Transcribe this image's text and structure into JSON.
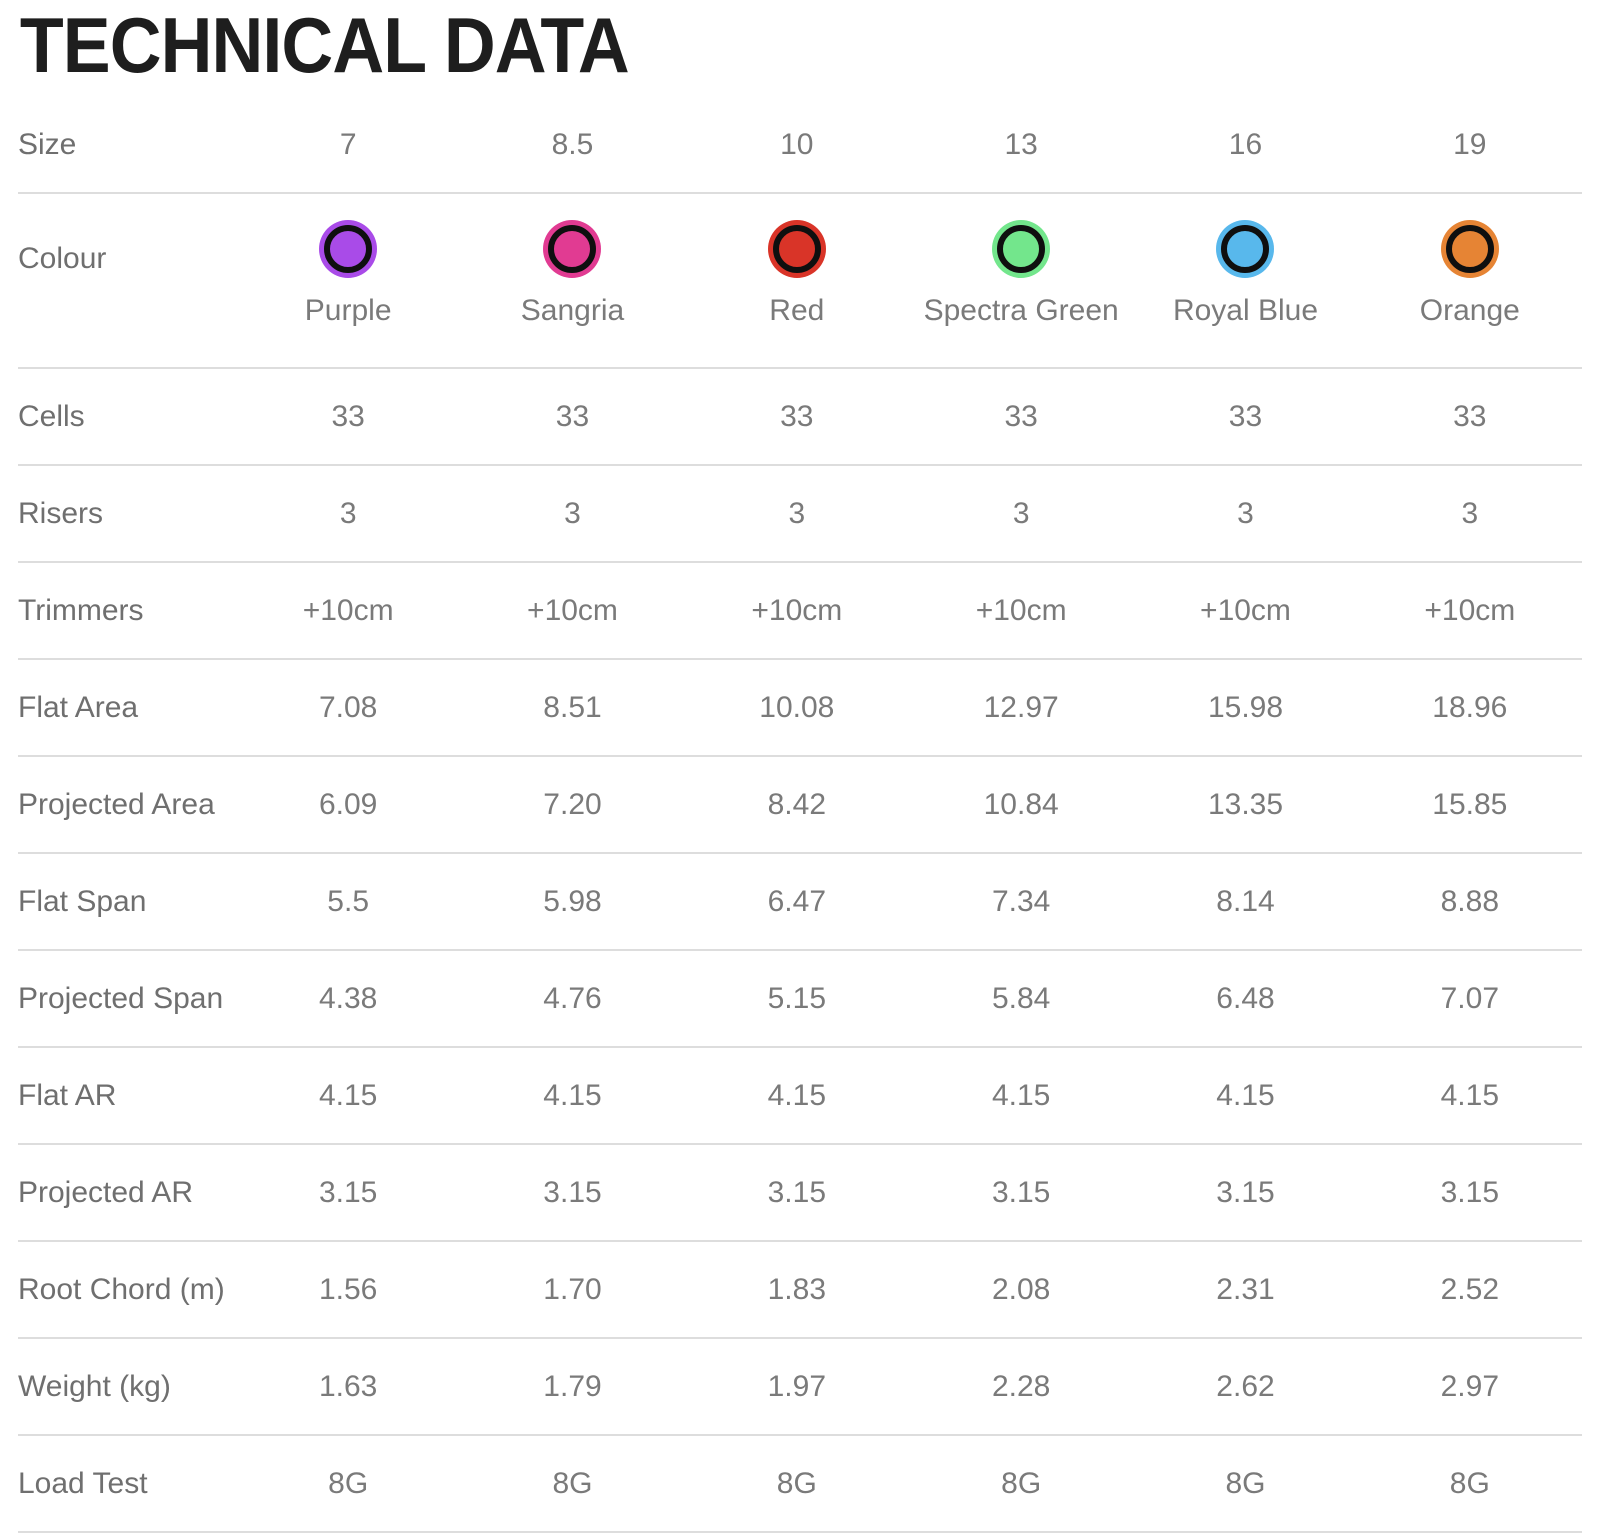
{
  "title": "TECHNICAL DATA",
  "table": {
    "rows": [
      {
        "type": "values",
        "label": "Size",
        "values": [
          "7",
          "8.5",
          "10",
          "13",
          "16",
          "19"
        ]
      },
      {
        "type": "swatches",
        "label": "Colour",
        "ring_color": "#0f0f0f",
        "swatches": [
          {
            "name": "Purple",
            "hex": "#a94be8"
          },
          {
            "name": "Sangria",
            "hex": "#e13b92"
          },
          {
            "name": "Red",
            "hex": "#d93428"
          },
          {
            "name": "Spectra Green",
            "hex": "#73e68c"
          },
          {
            "name": "Royal Blue",
            "hex": "#58b8ec"
          },
          {
            "name": "Orange",
            "hex": "#e68434"
          }
        ]
      },
      {
        "type": "values",
        "label": "Cells",
        "values": [
          "33",
          "33",
          "33",
          "33",
          "33",
          "33"
        ]
      },
      {
        "type": "values",
        "label": "Risers",
        "values": [
          "3",
          "3",
          "3",
          "3",
          "3",
          "3"
        ]
      },
      {
        "type": "values",
        "label": "Trimmers",
        "values": [
          "+10cm",
          "+10cm",
          "+10cm",
          "+10cm",
          "+10cm",
          "+10cm"
        ]
      },
      {
        "type": "values",
        "label": "Flat Area",
        "values": [
          "7.08",
          "8.51",
          "10.08",
          "12.97",
          "15.98",
          "18.96"
        ]
      },
      {
        "type": "values",
        "label": "Projected Area",
        "values": [
          "6.09",
          "7.20",
          "8.42",
          "10.84",
          "13.35",
          "15.85"
        ]
      },
      {
        "type": "values",
        "label": "Flat Span",
        "values": [
          "5.5",
          "5.98",
          "6.47",
          "7.34",
          "8.14",
          "8.88"
        ]
      },
      {
        "type": "values",
        "label": "Projected Span",
        "values": [
          "4.38",
          "4.76",
          "5.15",
          "5.84",
          "6.48",
          "7.07"
        ]
      },
      {
        "type": "values",
        "label": "Flat AR",
        "values": [
          "4.15",
          "4.15",
          "4.15",
          "4.15",
          "4.15",
          "4.15"
        ]
      },
      {
        "type": "values",
        "label": "Projected AR",
        "values": [
          "3.15",
          "3.15",
          "3.15",
          "3.15",
          "3.15",
          "3.15"
        ]
      },
      {
        "type": "values",
        "label": "Root Chord (m)",
        "values": [
          "1.56",
          "1.70",
          "1.83",
          "2.08",
          "2.31",
          "2.52"
        ]
      },
      {
        "type": "values",
        "label": "Weight (kg)",
        "values": [
          "1.63",
          "1.79",
          "1.97",
          "2.28",
          "2.62",
          "2.97"
        ]
      },
      {
        "type": "values",
        "label": "Load Test",
        "values": [
          "8G",
          "8G",
          "8G",
          "8G",
          "8G",
          "8G"
        ]
      }
    ]
  }
}
